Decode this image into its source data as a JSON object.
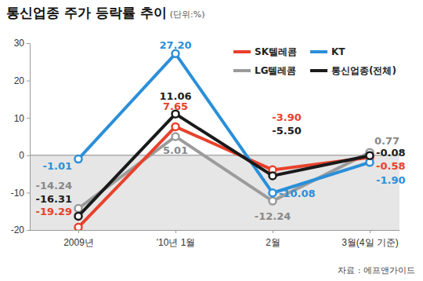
{
  "chart_data": {
    "type": "line",
    "title": "통신업종 주가 등락률 추이",
    "subtitle": "(단위:%)",
    "annotations": [
      "자료 : 에프앤가이드"
    ],
    "categories": [
      "2009년",
      "'10년 1월",
      "2월",
      "3월(4일 기준)"
    ],
    "series": [
      {
        "name": "SK텔레콤",
        "color": "#e8412b",
        "values": [
          -19.29,
          7.65,
          -3.9,
          -0.58
        ],
        "value_labels": [
          "-19.29",
          "7.65",
          "-3.90",
          "-0.58"
        ]
      },
      {
        "name": "KT",
        "color": "#2b8fd9",
        "values": [
          -1.01,
          27.2,
          -10.08,
          -1.9
        ],
        "value_labels": [
          "-1.01",
          "27.20",
          "-10.08",
          "-1.90"
        ]
      },
      {
        "name": "LG텔레콤",
        "color": "#9b9b9b",
        "values": [
          -14.24,
          5.01,
          -12.24,
          0.77
        ],
        "value_labels": [
          "-14.24",
          "5.01",
          "-12.24",
          "0.77"
        ]
      },
      {
        "name": "통신업종(전체)",
        "color": "#1a1a1a",
        "values": [
          -16.31,
          11.06,
          -5.5,
          -0.08
        ],
        "value_labels": [
          "-16.31",
          "11.06",
          "-5.50",
          "-0.08"
        ]
      }
    ],
    "ylim": [
      -20,
      30
    ],
    "yticks": [
      -20,
      -10,
      0,
      10,
      20,
      30
    ],
    "grid": false,
    "legend": "top-right",
    "data_labels": true,
    "marker": "circle",
    "line_style": "solid"
  }
}
